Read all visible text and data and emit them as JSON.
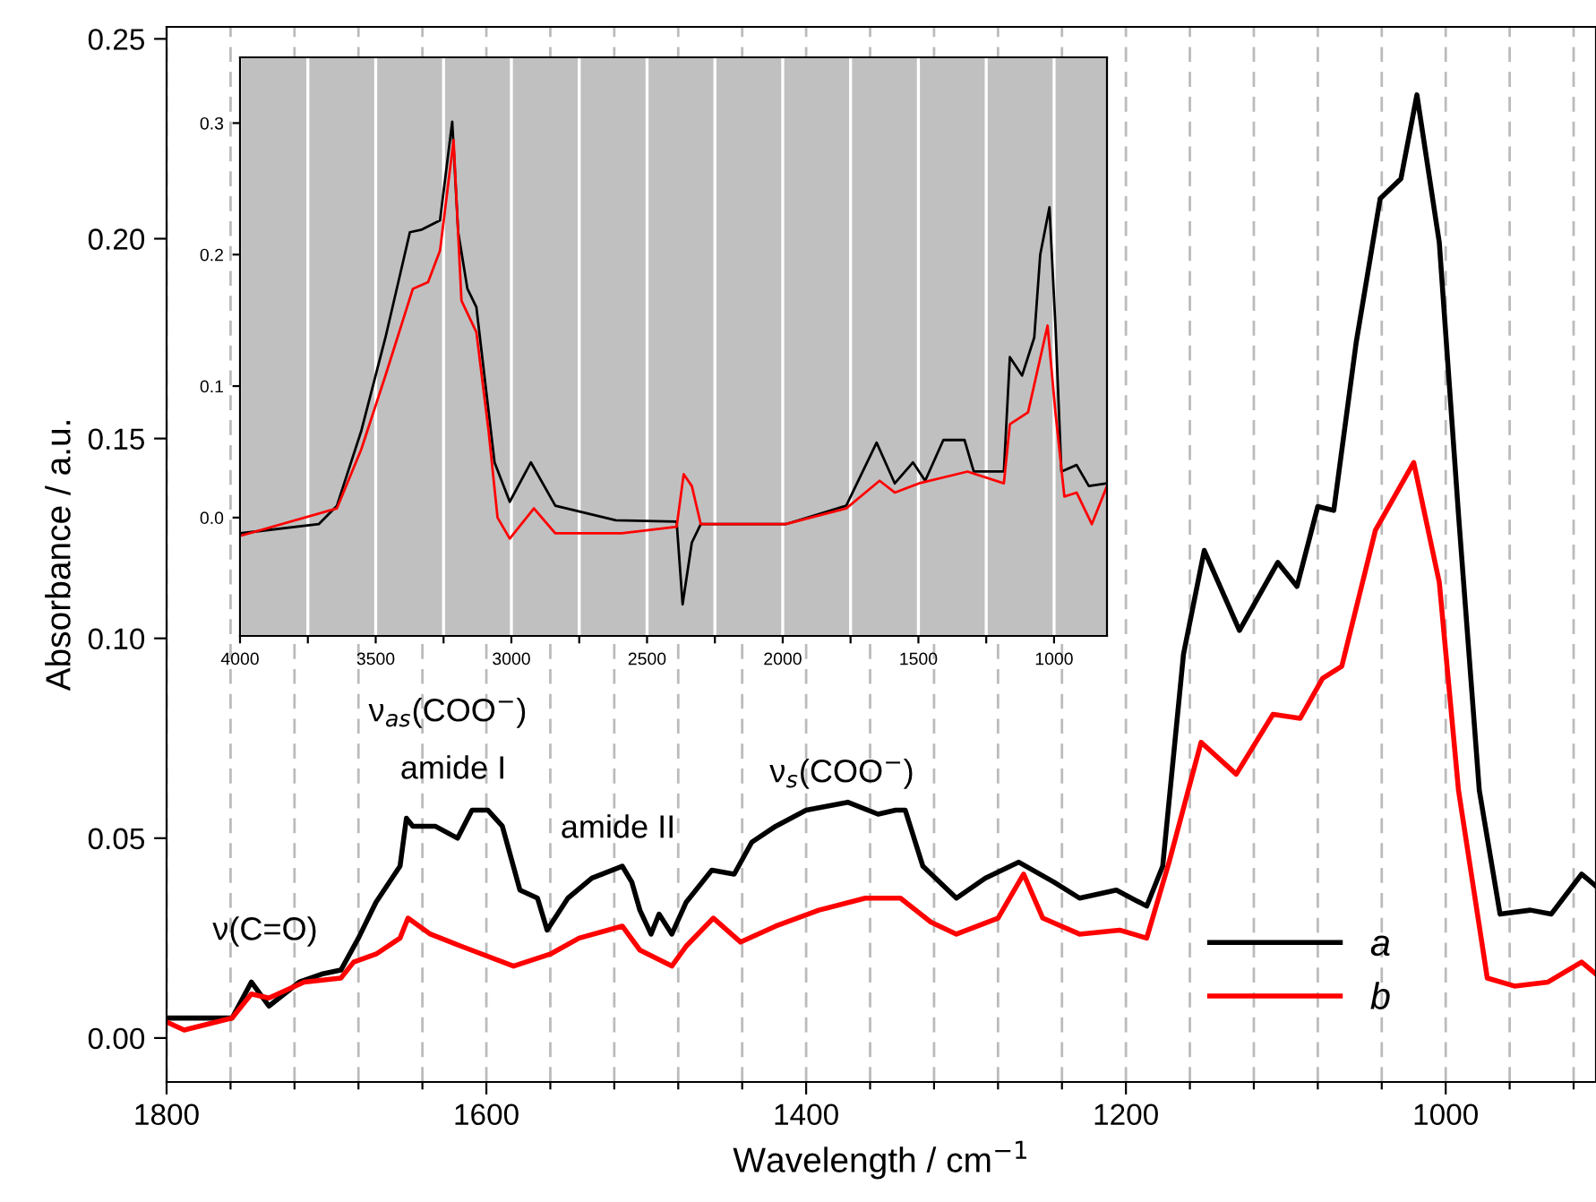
{
  "chart_data": [
    {
      "type": "line",
      "xlabel": "Wavelength / cm$^{−1}$",
      "ylabel": "Absorbance / a.u.",
      "xlim": [
        1800,
        906
      ],
      "ylim": [
        -0.011,
        0.253
      ],
      "xticks": [
        1800,
        {
          "value": 1760,
          "label": null
        },
        {
          "value": 1720,
          "label": null
        },
        {
          "value": 1680,
          "label": null
        },
        {
          "value": 1640,
          "label": null
        },
        1600,
        {
          "value": 1560,
          "label": null
        },
        {
          "value": 1520,
          "label": null
        },
        {
          "value": 1480,
          "label": null
        },
        {
          "value": 1440,
          "label": null
        },
        1400,
        {
          "value": 1360,
          "label": null
        },
        {
          "value": 1320,
          "label": null
        },
        {
          "value": 1280,
          "label": null
        },
        {
          "value": 1240,
          "label": null
        },
        1200,
        {
          "value": 1160,
          "label": null
        },
        {
          "value": 1120,
          "label": null
        },
        {
          "value": 1080,
          "label": null
        },
        {
          "value": 1040,
          "label": null
        },
        1000,
        {
          "value": 960,
          "label": null
        },
        {
          "value": 920,
          "label": null
        }
      ],
      "yticks": [
        {
          "value": 0,
          "label": "0.00"
        },
        {
          "value": 0.05,
          "label": "0.05"
        },
        {
          "value": 0.1,
          "label": "0.10"
        },
        {
          "value": 0.15,
          "label": "0.15"
        },
        {
          "value": 0.2,
          "label": "0.20"
        },
        {
          "value": 0.25,
          "label": "0.25"
        }
      ],
      "grid": "x",
      "legend": "bottom right",
      "annotations": [
        "ν(C=O)",
        "ν$_{as}$(COO$^{−}$)",
        "amide I",
        "amide II",
        "ν$_{s}$(COO$^{−}$)"
      ],
      "series": [
        {
          "name": "a",
          "color": "#000000",
          "x": [
            1800,
            1759,
            1747,
            1736,
            1717,
            1703,
            1691,
            1680,
            1669,
            1654,
            1650,
            1646,
            1632,
            1618,
            1609,
            1599,
            1590,
            1579,
            1568,
            1562,
            1549,
            1534,
            1515,
            1509,
            1504,
            1497,
            1492,
            1484,
            1475,
            1459,
            1445,
            1434,
            1419,
            1400,
            1374,
            1355,
            1344,
            1338,
            1327,
            1306,
            1288,
            1267,
            1245,
            1229,
            1206,
            1187,
            1177,
            1164,
            1151,
            1129,
            1105,
            1093,
            1080,
            1070,
            1056,
            1041,
            1028,
            1018,
            1004,
            992,
            979,
            966,
            947,
            934,
            915,
            906
          ],
          "values": [
            0.005,
            0.005,
            0.014,
            0.008,
            0.014,
            0.016,
            0.017,
            0.025,
            0.034,
            0.043,
            0.055,
            0.053,
            0.053,
            0.05,
            0.057,
            0.057,
            0.053,
            0.037,
            0.035,
            0.027,
            0.035,
            0.04,
            0.043,
            0.039,
            0.032,
            0.026,
            0.031,
            0.026,
            0.034,
            0.042,
            0.041,
            0.049,
            0.053,
            0.057,
            0.059,
            0.056,
            0.057,
            0.057,
            0.043,
            0.035,
            0.04,
            0.044,
            0.039,
            0.035,
            0.037,
            0.033,
            0.043,
            0.096,
            0.122,
            0.102,
            0.119,
            0.113,
            0.133,
            0.132,
            0.174,
            0.21,
            0.215,
            0.236,
            0.199,
            0.131,
            0.062,
            0.031,
            0.032,
            0.031,
            0.041,
            0.038
          ]
        },
        {
          "name": "b",
          "color": "#ff0000",
          "x": [
            1800,
            1789,
            1759,
            1747,
            1736,
            1714,
            1691,
            1683,
            1669,
            1654,
            1649,
            1635,
            1616,
            1583,
            1560,
            1542,
            1515,
            1504,
            1484,
            1475,
            1458,
            1441,
            1419,
            1392,
            1363,
            1341,
            1322,
            1306,
            1280,
            1264,
            1252,
            1229,
            1204,
            1187,
            1173,
            1153,
            1131,
            1108,
            1091,
            1077,
            1065,
            1044,
            1020,
            1004,
            992,
            974,
            957,
            936,
            915,
            906
          ],
          "values": [
            0.004,
            0.002,
            0.005,
            0.011,
            0.01,
            0.014,
            0.015,
            0.019,
            0.021,
            0.025,
            0.03,
            0.026,
            0.023,
            0.018,
            0.021,
            0.025,
            0.028,
            0.022,
            0.018,
            0.023,
            0.03,
            0.024,
            0.028,
            0.032,
            0.035,
            0.035,
            0.029,
            0.026,
            0.03,
            0.041,
            0.03,
            0.026,
            0.027,
            0.025,
            0.044,
            0.074,
            0.066,
            0.081,
            0.08,
            0.09,
            0.093,
            0.127,
            0.144,
            0.114,
            0.062,
            0.015,
            0.013,
            0.014,
            0.019,
            0.016
          ]
        }
      ]
    },
    {
      "type": "line",
      "xlim": [
        4000,
        805
      ],
      "ylim": [
        -0.09,
        0.35
      ],
      "xticks": [
        4000,
        {
          "value": 3750,
          "label": null
        },
        3500,
        {
          "value": 3250,
          "label": null
        },
        3000,
        {
          "value": 2750,
          "label": null
        },
        2500,
        {
          "value": 2250,
          "label": null
        },
        2000,
        {
          "value": 1750,
          "label": null
        },
        1500,
        {
          "value": 1250,
          "label": null
        },
        1000
      ],
      "yticks": [
        {
          "value": 0,
          "label": "0.0"
        },
        {
          "value": 0.1,
          "label": "0.1"
        },
        {
          "value": 0.2,
          "label": "0.2"
        },
        {
          "value": 0.3,
          "label": "0.3"
        }
      ],
      "grid": "x",
      "series": [
        {
          "color": "#000000",
          "x": [
            4000,
            3710,
            3643,
            3553,
            3464,
            3374,
            3330,
            3263,
            3218,
            3196,
            3162,
            3129,
            3062,
            3006,
            2928,
            2838,
            2615,
            2391,
            2369,
            2335,
            2302,
            1989,
            1766,
            1654,
            1587,
            1520,
            1475,
            1408,
            1330,
            1296,
            1185,
            1163,
            1118,
            1073,
            1051,
            1017,
            995,
            973,
            917,
            872,
            805
          ],
          "values": [
            -0.012,
            -0.005,
            0.009,
            0.066,
            0.137,
            0.217,
            0.219,
            0.226,
            0.301,
            0.217,
            0.174,
            0.16,
            0.042,
            0.012,
            0.042,
            0.009,
            -0.002,
            -0.003,
            -0.066,
            -0.019,
            -0.005,
            -0.005,
            0.009,
            0.057,
            0.026,
            0.042,
            0.028,
            0.059,
            0.059,
            0.035,
            0.035,
            0.122,
            0.108,
            0.137,
            0.2,
            0.236,
            0.146,
            0.035,
            0.04,
            0.024,
            0.026
          ]
        },
        {
          "color": "#ff0000",
          "x": [
            4000,
            3643,
            3553,
            3464,
            3363,
            3307,
            3263,
            3213,
            3184,
            3129,
            3084,
            3051,
            3006,
            2917,
            2838,
            2593,
            2391,
            2365,
            2335,
            2302,
            1989,
            1766,
            1643,
            1587,
            1498,
            1319,
            1185,
            1163,
            1096,
            1024,
            995,
            962,
            917,
            861,
            805
          ],
          "values": [
            -0.014,
            0.007,
            0.052,
            0.108,
            0.174,
            0.179,
            0.203,
            0.287,
            0.165,
            0.141,
            0.066,
            0.0,
            -0.016,
            0.007,
            -0.012,
            -0.012,
            -0.007,
            0.033,
            0.024,
            -0.005,
            -0.005,
            0.007,
            0.028,
            0.019,
            0.026,
            0.035,
            0.026,
            0.071,
            0.08,
            0.146,
            0.08,
            0.016,
            0.019,
            -0.005,
            0.024
          ]
        }
      ]
    }
  ]
}
